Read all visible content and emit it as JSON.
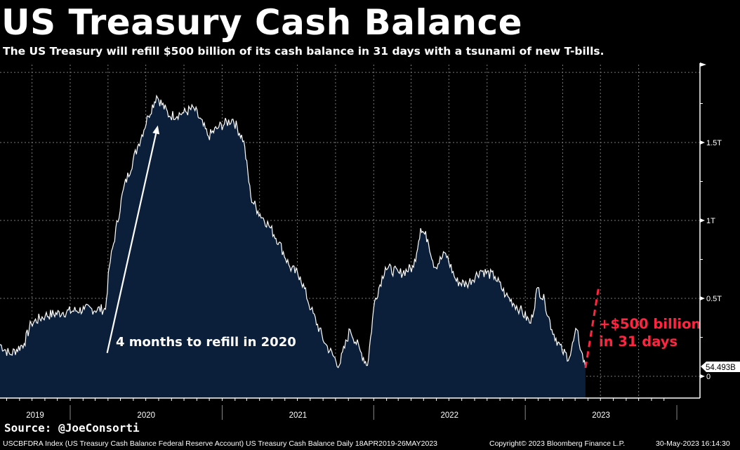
{
  "header": {
    "title": "US Treasury Cash Balance",
    "subtitle": "The US Treasury will refill $500 billion of its cash balance in 31 days with a tsunami of new T-bills."
  },
  "source": "Source: @JoeConsorti",
  "footer": {
    "description": "USCBFDRA Index (US Treasury Cash Balance Federal Reserve Account) US Treasury Cash Balance  Daily 18APR2019-26MAY2023",
    "copyright": "Copyright© 2023 Bloomberg Finance L.P.",
    "timestamp": "30-May-2023 16:14:30"
  },
  "colors": {
    "background": "#000000",
    "area": "#0b1f3a",
    "line": "#ffffff",
    "projection": "#ff2440",
    "grid": "#777777"
  },
  "chart_data": {
    "type": "area",
    "title": "US Treasury Cash Balance",
    "ylabel": "",
    "ylim": [
      0,
      1.95
    ],
    "y_unit": "T (USD trillions)",
    "y_ticks": [
      {
        "value": 0,
        "label": "0"
      },
      {
        "value": 0.5,
        "label": "0.5T"
      },
      {
        "value": 1,
        "label": "1T"
      },
      {
        "value": 1.5,
        "label": "1.5T"
      }
    ],
    "x_ticks": [
      "2019",
      "2020",
      "2021",
      "2022",
      "2023"
    ],
    "grid": true,
    "last_value_label": "54.493B",
    "series": [
      {
        "x": [
          "2019-07-14",
          "2019-08-09",
          "2019-09-12",
          "2019-09-29",
          "2019-11-02",
          "2019-12-15",
          "2020-02-04",
          "2020-03-26",
          "2020-04-04",
          "2020-05-08",
          "2020-06-11",
          "2020-07-07",
          "2020-07-27",
          "2020-08-27",
          "2020-09-30",
          "2020-10-25",
          "2020-11-29",
          "2020-12-24",
          "2021-01-27",
          "2021-02-22",
          "2021-03-11",
          "2021-03-28",
          "2021-04-23",
          "2021-05-18",
          "2021-06-13",
          "2021-07-08",
          "2021-08-03",
          "2021-09-06",
          "2021-10-10",
          "2021-11-05",
          "2021-11-30",
          "2021-12-17",
          "2022-01-03",
          "2022-01-29",
          "2022-03-04",
          "2022-04-07",
          "2022-04-24",
          "2022-05-11",
          "2022-05-28",
          "2022-06-23",
          "2022-07-19",
          "2022-08-13",
          "2022-09-16",
          "2022-10-20",
          "2022-11-15",
          "2022-12-19",
          "2023-01-14",
          "2023-01-31",
          "2023-02-17",
          "2023-03-06",
          "2023-03-31",
          "2023-04-17",
          "2023-05-05",
          "2023-05-16",
          "2023-05-26"
        ],
        "values": [
          0.21,
          0.14,
          0.21,
          0.34,
          0.39,
          0.41,
          0.43,
          0.43,
          0.7,
          1.2,
          1.47,
          1.67,
          1.8,
          1.67,
          1.69,
          1.72,
          1.54,
          1.6,
          1.65,
          1.51,
          1.15,
          1.06,
          0.97,
          0.86,
          0.7,
          0.64,
          0.43,
          0.21,
          0.07,
          0.3,
          0.16,
          0.07,
          0.48,
          0.7,
          0.66,
          0.7,
          0.95,
          0.88,
          0.7,
          0.79,
          0.61,
          0.59,
          0.68,
          0.64,
          0.52,
          0.43,
          0.34,
          0.57,
          0.48,
          0.3,
          0.16,
          0.12,
          0.3,
          0.16,
          0.054
        ]
      }
    ],
    "projection": {
      "from": {
        "x": "2023-05-26",
        "value": 0.054
      },
      "to": {
        "x": "2023-06-26",
        "value": 0.56
      }
    },
    "annotations": [
      {
        "id": "refill2020",
        "text": "4 months to refill in 2020",
        "arrow_from": {
          "x": "2020-03-30",
          "value": 0.15
        },
        "arrow_to": {
          "x": "2020-07-30",
          "value": 1.61
        }
      },
      {
        "id": "projection_line1",
        "text": "+$500 billion"
      },
      {
        "id": "projection_line2",
        "text": "in 31 days"
      }
    ]
  }
}
